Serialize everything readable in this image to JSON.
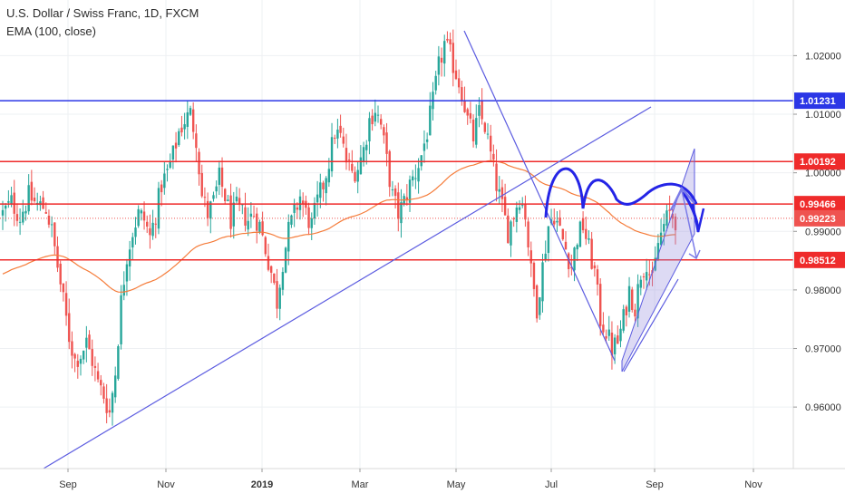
{
  "header": {
    "symbol_line": "U.S. Dollar / Swiss Franc, 1D, FXCM",
    "indicator_line": "EMA (100, close)"
  },
  "chart_data": {
    "type": "candlestick",
    "y_ticks": [
      0.96,
      0.97,
      0.98,
      0.99,
      1.0,
      1.01,
      1.02
    ],
    "y_tick_labels": [
      "0.96000",
      "0.97000",
      "0.98000",
      "0.99000",
      "1.00000",
      "1.01000",
      "1.02000"
    ],
    "ylim": [
      0.9495,
      1.0295
    ],
    "x_ticks": [
      {
        "label": "Sep",
        "bold": false
      },
      {
        "label": "Nov",
        "bold": false
      },
      {
        "label": "2019",
        "bold": true
      },
      {
        "label": "Mar",
        "bold": false
      },
      {
        "label": "May",
        "bold": false
      },
      {
        "label": "Jul",
        "bold": false
      },
      {
        "label": "Sep",
        "bold": false
      },
      {
        "label": "Nov",
        "bold": false
      }
    ],
    "levels": [
      {
        "value": 1.01231,
        "label": "1.01231",
        "color": "#2b36e6"
      },
      {
        "value": 1.00192,
        "label": "1.00192",
        "color": "#ef2b2b"
      },
      {
        "value": 0.99466,
        "label": "0.99466",
        "color": "#ef2b2b"
      },
      {
        "value": 0.98512,
        "label": "0.98512",
        "color": "#ef2b2b"
      }
    ],
    "last_price": {
      "value": 0.99223,
      "label": "0.99223",
      "color": "#ef5350"
    },
    "ema_color": "#f57c3a",
    "up_color": "#26a69a",
    "down_color": "#ef5350",
    "trend_color": "#5b5be0",
    "close_path": [
      [
        0,
        0.993
      ],
      [
        3,
        0.995
      ],
      [
        6,
        0.9925
      ],
      [
        9,
        0.996
      ],
      [
        12,
        0.9945
      ],
      [
        15,
        0.994
      ],
      [
        17,
        0.99
      ],
      [
        19,
        0.984
      ],
      [
        21,
        0.978
      ],
      [
        23,
        0.972
      ],
      [
        25,
        0.968
      ],
      [
        27,
        0.969
      ],
      [
        29,
        0.971
      ],
      [
        31,
        0.968
      ],
      [
        33,
        0.964
      ],
      [
        35,
        0.962
      ],
      [
        37,
        0.959
      ],
      [
        39,
        0.966
      ],
      [
        41,
        0.978
      ],
      [
        43,
        0.986
      ],
      [
        45,
        0.99
      ],
      [
        47,
        0.993
      ],
      [
        49,
        0.992
      ],
      [
        51,
        0.989
      ],
      [
        53,
        0.993
      ],
      [
        55,
        0.998
      ],
      [
        57,
        1.0
      ],
      [
        59,
        1.003
      ],
      [
        61,
        1.007
      ],
      [
        63,
        1.009
      ],
      [
        65,
        1.01
      ],
      [
        67,
        1.006
      ],
      [
        69,
        0.996
      ],
      [
        71,
        0.993
      ],
      [
        73,
        0.995
      ],
      [
        75,
        0.999
      ],
      [
        77,
        0.996
      ],
      [
        79,
        0.992
      ],
      [
        81,
        0.994
      ],
      [
        83,
        0.993
      ],
      [
        85,
        0.992
      ],
      [
        87,
        0.993
      ],
      [
        89,
        0.991
      ],
      [
        91,
        0.987
      ],
      [
        93,
        0.983
      ],
      [
        95,
        0.978
      ],
      [
        97,
        0.985
      ],
      [
        99,
        0.99
      ],
      [
        101,
        0.993
      ],
      [
        103,
        0.996
      ],
      [
        105,
        0.993
      ],
      [
        107,
        0.991
      ],
      [
        109,
        0.995
      ],
      [
        111,
        0.998
      ],
      [
        113,
        1.002
      ],
      [
        115,
        1.007
      ],
      [
        117,
        1.006
      ],
      [
        119,
        1.002
      ],
      [
        121,
        1.0
      ],
      [
        123,
        1.001
      ],
      [
        125,
        1.004
      ],
      [
        127,
        1.009
      ],
      [
        129,
        1.011
      ],
      [
        131,
        1.008
      ],
      [
        133,
        1.002
      ],
      [
        135,
        0.996
      ],
      [
        137,
        0.993
      ],
      [
        139,
        0.995
      ],
      [
        141,
        0.998
      ],
      [
        143,
        1.0
      ],
      [
        145,
        1.003
      ],
      [
        147,
        1.007
      ],
      [
        149,
        1.012
      ],
      [
        151,
        1.018
      ],
      [
        153,
        1.022
      ],
      [
        155,
        1.02
      ],
      [
        157,
        1.017
      ],
      [
        159,
        1.014
      ],
      [
        161,
        1.009
      ],
      [
        163,
        1.006
      ],
      [
        165,
        1.01
      ],
      [
        167,
        1.008
      ],
      [
        169,
        1.003
      ],
      [
        171,
        0.998
      ],
      [
        173,
        0.994
      ],
      [
        175,
        0.99
      ],
      [
        177,
        0.993
      ],
      [
        179,
        0.996
      ],
      [
        181,
        0.993
      ],
      [
        183,
        0.983
      ],
      [
        185,
        0.977
      ],
      [
        187,
        0.984
      ],
      [
        189,
        0.991
      ],
      [
        191,
        0.993
      ],
      [
        193,
        0.99
      ],
      [
        195,
        0.987
      ],
      [
        197,
        0.984
      ],
      [
        199,
        0.989
      ],
      [
        201,
        0.991
      ],
      [
        203,
        0.987
      ],
      [
        205,
        0.983
      ],
      [
        207,
        0.975
      ],
      [
        209,
        0.973
      ],
      [
        211,
        0.97
      ],
      [
        213,
        0.971
      ],
      [
        215,
        0.975
      ],
      [
        217,
        0.98
      ],
      [
        219,
        0.977
      ],
      [
        221,
        0.983
      ],
      [
        223,
        0.985
      ],
      [
        225,
        0.981
      ],
      [
        227,
        0.988
      ],
      [
        229,
        0.991
      ],
      [
        231,
        0.993
      ],
      [
        233,
        0.992
      ]
    ]
  }
}
